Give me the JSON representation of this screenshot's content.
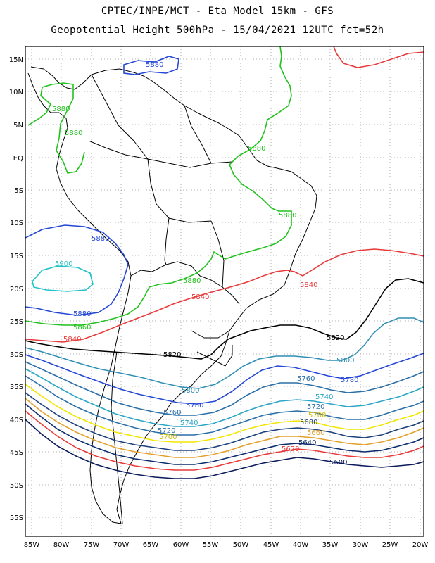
{
  "title_line1": "CPTEC/INPE/MCT -  Eta Model 15km - GFS",
  "title_line2": "Geopotential Height 500hPa - 15/04/2021 12UTC fct=52h",
  "lat_labels": [
    "15N",
    "10N",
    "5N",
    "EQ",
    "5S",
    "10S",
    "15S",
    "20S",
    "25S",
    "30S",
    "35S",
    "40S",
    "45S",
    "50S",
    "55S"
  ],
  "lon_labels": [
    "85W",
    "80W",
    "75W",
    "70W",
    "65W",
    "60W",
    "55W",
    "50W",
    "45W",
    "40W",
    "35W",
    "30W",
    "25W",
    "20W"
  ],
  "contour_labels": {
    "c5880_a": "5880",
    "c5880_b": "5880",
    "c5880_c": "5880",
    "c5880_d": "5880",
    "c5880_e": "5880",
    "c5880_f": "5880",
    "c5880_g": "5880",
    "c5880_h": "5880",
    "c5900": "5900",
    "c5860_a": "5860",
    "c5860_b": "5860",
    "c5840_a": "5840",
    "c5840_b": "5840",
    "c5840_c": "5840",
    "c5820_a": "5820",
    "c5820_b": "5820",
    "c5800_a": "5800",
    "c5800_b": "5800",
    "c5780_a": "5780",
    "c5780_b": "5780",
    "c5760_a": "5760",
    "c5760_b": "5760",
    "c5740_a": "5740",
    "c5740_b": "5740",
    "c5720_a": "5720",
    "c5720_b": "5720",
    "c5700_a": "5700",
    "c5700_b": "5700",
    "c5680": "5680",
    "c5660": "5660",
    "c5640": "5640",
    "c5620": "5620",
    "c5600": "5600"
  },
  "colors": {
    "5900": "#1ec3c8",
    "5880_blue": "#2547d6",
    "5880_green": "#22c21e",
    "5860": "#22c21e",
    "5840": "#e83a3a",
    "5820": "#000000",
    "5800": "#2f8fb5",
    "5780": "#2547d6",
    "5760": "#2a6fa8",
    "5740": "#2aa6c6",
    "5720": "#2a6fa8",
    "5700": "#f2e600",
    "5680": "#1b3f7a",
    "5660": "#e3a02a",
    "5640": "#0b2c6c",
    "5620": "#e83a3a",
    "5600": "#0a1a5a"
  }
}
